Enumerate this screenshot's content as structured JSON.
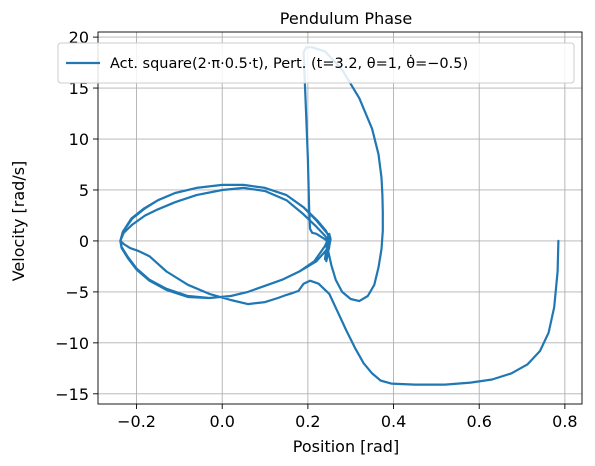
{
  "chart_data": {
    "type": "line",
    "title": "Pendulum Phase",
    "xlabel": "Position [rad]",
    "ylabel": "Velocity [rad/s]",
    "xlim": [
      -0.29,
      0.84
    ],
    "ylim": [
      -16,
      20.5
    ],
    "xticks": [
      -0.2,
      0.0,
      0.2,
      0.4,
      0.6,
      0.8
    ],
    "xtick_labels": [
      "−0.2",
      "0.0",
      "0.2",
      "0.4",
      "0.6",
      "0.8"
    ],
    "yticks": [
      -15,
      -10,
      -5,
      0,
      5,
      10,
      15,
      20
    ],
    "ytick_labels": [
      "−15",
      "−10",
      "−5",
      "0",
      "5",
      "10",
      "15",
      "20"
    ],
    "grid": true,
    "legend_position": "top",
    "series_color": "#1f77b4",
    "legend_label": "Act. square(2·π·0.5·t), Pert. (t=3.2, θ=1, θ̇=−0.5)",
    "series": [
      {
        "name": "Act. square(2·π·0.5·t), Pert. (t=3.2, θ=1, θ̇=−0.5)",
        "x": [
          0.785,
          0.783,
          0.775,
          0.762,
          0.742,
          0.713,
          0.675,
          0.63,
          0.58,
          0.52,
          0.45,
          0.395,
          0.37,
          0.35,
          0.33,
          0.31,
          0.29,
          0.27,
          0.25,
          0.225,
          0.205,
          0.19,
          0.178,
          0.165,
          0.15,
          0.13,
          0.1,
          0.06,
          0.02,
          -0.03,
          -0.08,
          -0.13,
          -0.17,
          -0.195,
          -0.215,
          -0.23,
          -0.238,
          -0.23,
          -0.21,
          -0.18,
          -0.15,
          -0.11,
          -0.06,
          0.0,
          0.05,
          0.1,
          0.15,
          0.19,
          0.22,
          0.24,
          0.248,
          0.25,
          0.245,
          0.24,
          0.242,
          0.248,
          0.252,
          0.25,
          0.246,
          0.243,
          0.245,
          0.25,
          0.253,
          0.251,
          0.247,
          0.245,
          0.248,
          0.255,
          0.265,
          0.28,
          0.3,
          0.32,
          0.34,
          0.355,
          0.365,
          0.372,
          0.375,
          0.375,
          0.374,
          0.372,
          0.365,
          0.35,
          0.32,
          0.28,
          0.24,
          0.21,
          0.196,
          0.19,
          0.195,
          0.2,
          0.203,
          0.205,
          0.21,
          0.22,
          0.235,
          0.245,
          0.24,
          0.215,
          0.18,
          0.14,
          0.1,
          0.06,
          0.02,
          -0.03,
          -0.08,
          -0.13,
          -0.17,
          -0.2,
          -0.22,
          -0.235,
          -0.238,
          -0.232,
          -0.21,
          -0.18,
          -0.15,
          -0.11,
          -0.06,
          0.0,
          0.05,
          0.1,
          0.15,
          0.19,
          0.22,
          0.24,
          0.25,
          0.25,
          0.248,
          0.245,
          0.243,
          0.245,
          0.248,
          0.25,
          0.243,
          0.22,
          0.18,
          0.14,
          0.1,
          0.06,
          0.02,
          -0.03,
          -0.08,
          -0.13,
          -0.17,
          -0.2,
          -0.22,
          -0.235,
          -0.238,
          -0.232,
          -0.212,
          -0.182,
          -0.15,
          -0.11,
          -0.06,
          0.0,
          0.05,
          0.1,
          0.15,
          0.19,
          0.222,
          0.242,
          0.25
        ],
        "y": [
          0.0,
          -3.0,
          -6.5,
          -9.0,
          -10.8,
          -12.1,
          -13.0,
          -13.6,
          -13.9,
          -14.1,
          -14.1,
          -14.0,
          -13.7,
          -13.0,
          -12.0,
          -10.5,
          -8.8,
          -7.0,
          -5.2,
          -4.2,
          -3.9,
          -4.2,
          -4.9,
          -5.1,
          -5.3,
          -5.6,
          -6.0,
          -6.2,
          -5.8,
          -5.2,
          -4.3,
          -3.0,
          -1.5,
          -1.0,
          -0.7,
          -0.3,
          0.0,
          0.8,
          1.6,
          2.5,
          3.1,
          3.8,
          4.5,
          5.0,
          5.2,
          4.9,
          4.0,
          2.6,
          1.4,
          0.5,
          0.0,
          -0.6,
          -1.4,
          -1.8,
          -1.1,
          -0.2,
          0.2,
          0.7,
          0.3,
          -0.4,
          -0.9,
          -0.5,
          0.2,
          0.5,
          0.1,
          -0.4,
          -1.1,
          -2.4,
          -3.8,
          -5.0,
          -5.7,
          -5.9,
          -5.4,
          -4.3,
          -2.6,
          -0.8,
          1.0,
          2.8,
          4.5,
          6.2,
          8.5,
          11.0,
          14.0,
          16.8,
          18.6,
          19.0,
          19.0,
          18.5,
          13.5,
          8.0,
          3.0,
          1.2,
          0.8,
          0.7,
          0.3,
          0.0,
          -0.5,
          -2.0,
          -3.0,
          -3.8,
          -4.4,
          -5.0,
          -5.4,
          -5.6,
          -5.4,
          -4.7,
          -3.8,
          -2.7,
          -1.6,
          -0.6,
          0.0,
          0.9,
          2.2,
          3.2,
          4.0,
          4.7,
          5.2,
          5.5,
          5.5,
          5.2,
          4.5,
          3.3,
          2.0,
          1.0,
          0.5,
          0.0,
          -0.6,
          -1.4,
          -2.0,
          -1.6,
          -0.8,
          -0.2,
          -0.9,
          -2.0,
          -3.0,
          -3.8,
          -4.4,
          -5.0,
          -5.4,
          -5.6,
          -5.5,
          -4.8,
          -3.9,
          -2.8,
          -1.7,
          -0.7,
          0.0,
          0.9,
          2.2,
          3.2,
          4.0,
          4.7,
          5.2,
          5.5,
          5.5,
          5.2,
          4.5,
          3.3,
          2.0,
          1.0,
          0.3
        ]
      }
    ]
  }
}
